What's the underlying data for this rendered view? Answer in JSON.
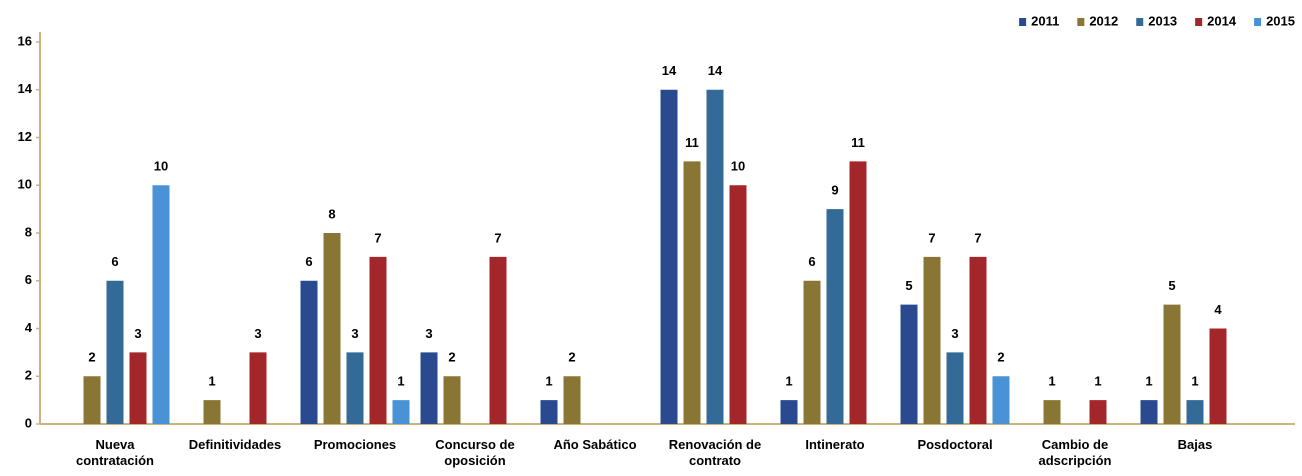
{
  "chart_data": {
    "type": "bar",
    "categories": [
      "Nueva contratación",
      "Definitividades",
      "Promociones",
      "Concurso de oposición",
      "Año Sabático",
      "Renovación de contrato",
      "Intinerato",
      "Posdoctoral",
      "Cambio de adscripción",
      "Bajas"
    ],
    "series": [
      {
        "name": "2011",
        "color": "#294a8e",
        "values": [
          null,
          null,
          6,
          3,
          1,
          14,
          1,
          5,
          null,
          1
        ]
      },
      {
        "name": "2012",
        "color": "#8a7634",
        "values": [
          2,
          1,
          8,
          2,
          2,
          11,
          6,
          7,
          1,
          5
        ]
      },
      {
        "name": "2013",
        "color": "#336a98",
        "values": [
          6,
          null,
          3,
          null,
          null,
          14,
          9,
          3,
          null,
          1
        ]
      },
      {
        "name": "2014",
        "color": "#a3262b",
        "values": [
          3,
          3,
          7,
          7,
          null,
          10,
          11,
          7,
          1,
          4
        ]
      },
      {
        "name": "2015",
        "color": "#4a92d6",
        "values": [
          10,
          null,
          1,
          null,
          null,
          null,
          null,
          2,
          null,
          null
        ]
      }
    ],
    "ylim": [
      0,
      16
    ],
    "yticks": [
      0,
      2,
      4,
      6,
      8,
      10,
      12,
      14,
      16
    ],
    "legend": "top-right"
  }
}
